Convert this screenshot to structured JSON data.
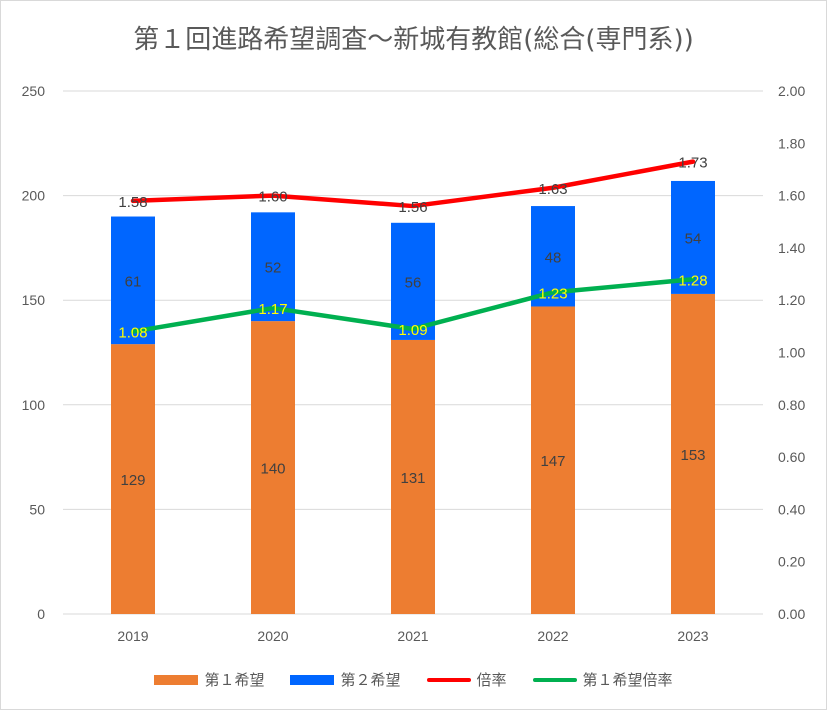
{
  "chart_data": {
    "type": "bar",
    "title": "第１回進路希望調査～新城有教館(総合(専門系))",
    "categories": [
      "2019",
      "2020",
      "2021",
      "2022",
      "2023"
    ],
    "stacked": true,
    "series": [
      {
        "name": "第１希望",
        "kind": "bar",
        "axis": "left",
        "color": "#ED7D31",
        "values": [
          129,
          140,
          131,
          147,
          153
        ]
      },
      {
        "name": "第２希望",
        "kind": "bar",
        "axis": "left",
        "color": "#0066FF",
        "values": [
          61,
          52,
          56,
          48,
          54
        ]
      },
      {
        "name": "倍率",
        "kind": "line",
        "axis": "right",
        "color": "#FF0000",
        "values": [
          1.58,
          1.6,
          1.56,
          1.63,
          1.73
        ]
      },
      {
        "name": "第１希望倍率",
        "kind": "line",
        "axis": "right",
        "color": "#00B050",
        "values": [
          1.08,
          1.17,
          1.09,
          1.23,
          1.28
        ]
      }
    ],
    "y_left": {
      "min": 0,
      "max": 250,
      "step": 50,
      "ticks": [
        "0",
        "50",
        "100",
        "150",
        "200",
        "250"
      ]
    },
    "y_right": {
      "min": 0,
      "max": 2.0,
      "step": 0.2,
      "ticks": [
        "0.00",
        "0.20",
        "0.40",
        "0.60",
        "0.80",
        "1.00",
        "1.20",
        "1.40",
        "1.60",
        "1.80",
        "2.00"
      ]
    },
    "ratio_labels": [
      "1.58",
      "1.60",
      "1.56",
      "1.63",
      "1.73"
    ],
    "first_ratio_labels": [
      "1.08",
      "1.17",
      "1.09",
      "1.23",
      "1.28"
    ],
    "grid": true,
    "legend_position": "bottom"
  },
  "legend": {
    "first_choice": "第１希望",
    "second_choice": "第２希望",
    "ratio": "倍率",
    "first_ratio": "第１希望倍率"
  },
  "colors": {
    "first_choice": "#ED7D31",
    "second_choice": "#0066FF",
    "ratio": "#FF0000",
    "first_ratio": "#00B050",
    "first_ratio_label": "#FFFF00"
  }
}
